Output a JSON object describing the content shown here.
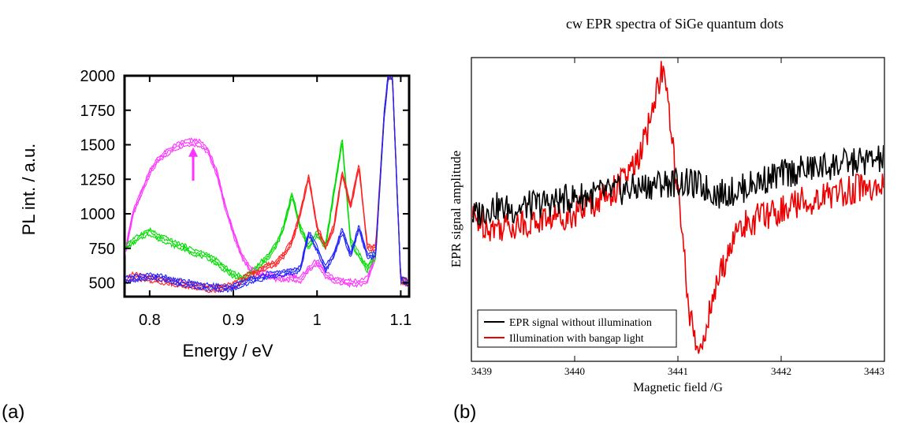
{
  "panel_labels": [
    "(a)",
    "(b)"
  ],
  "chart_data": [
    {
      "type": "line",
      "panel": "(a)",
      "title": "",
      "xlabel": "Energy / eV",
      "ylabel": "PL int. / a.u.",
      "xlim": [
        0.77,
        1.11
      ],
      "ylim": [
        400,
        2000
      ],
      "xticks": [
        0.8,
        0.9,
        1.0,
        1.1
      ],
      "xtick_labels": [
        "0.8",
        "0.9",
        "1",
        "1.1"
      ],
      "yticks": [
        500,
        750,
        1000,
        1250,
        1500,
        1750,
        2000
      ],
      "ytick_labels": [
        "500",
        "750",
        "1000",
        "1250",
        "1500",
        "1750",
        "2000"
      ],
      "grid": false,
      "annotations": [
        {
          "type": "arrow",
          "x": 0.852,
          "y_from": 1240,
          "y_to": 1470,
          "color": "#ff33ff"
        }
      ],
      "series": [
        {
          "color": "#ff33ff",
          "x": [
            0.77,
            0.78,
            0.79,
            0.8,
            0.81,
            0.82,
            0.83,
            0.84,
            0.85,
            0.86,
            0.87,
            0.88,
            0.89,
            0.9,
            0.91,
            0.92,
            0.93,
            0.94,
            0.95,
            0.96,
            0.97,
            0.98,
            0.99,
            1.0,
            1.01,
            1.02,
            1.03,
            1.04,
            1.05,
            1.06,
            1.07,
            1.08,
            1.085,
            1.09,
            1.1,
            1.11
          ],
          "y": [
            700,
            1000,
            1150,
            1300,
            1390,
            1440,
            1480,
            1510,
            1520,
            1510,
            1450,
            1300,
            1060,
            860,
            700,
            600,
            570,
            560,
            540,
            530,
            540,
            520,
            600,
            650,
            560,
            520,
            510,
            500,
            500,
            520,
            700,
            1700,
            2000,
            2000,
            520,
            500
          ]
        },
        {
          "color": "#00dd00",
          "x": [
            0.77,
            0.78,
            0.79,
            0.8,
            0.81,
            0.82,
            0.83,
            0.84,
            0.85,
            0.86,
            0.87,
            0.88,
            0.89,
            0.9,
            0.91,
            0.92,
            0.93,
            0.94,
            0.95,
            0.96,
            0.97,
            0.98,
            0.99,
            1.0,
            1.01,
            1.02,
            1.03,
            1.04,
            1.05,
            1.06,
            1.07,
            1.08,
            1.085,
            1.09,
            1.1,
            1.11
          ],
          "y": [
            760,
            800,
            840,
            870,
            830,
            810,
            780,
            760,
            730,
            710,
            690,
            650,
            600,
            560,
            530,
            560,
            620,
            680,
            760,
            900,
            1140,
            900,
            760,
            860,
            760,
            1150,
            1530,
            800,
            700,
            600,
            700,
            1700,
            2000,
            2000,
            520,
            500
          ]
        },
        {
          "color": "#ff2222",
          "x": [
            0.77,
            0.78,
            0.79,
            0.8,
            0.81,
            0.82,
            0.83,
            0.84,
            0.85,
            0.86,
            0.87,
            0.88,
            0.89,
            0.9,
            0.91,
            0.92,
            0.93,
            0.94,
            0.95,
            0.96,
            0.97,
            0.98,
            0.99,
            1.0,
            1.01,
            1.02,
            1.03,
            1.04,
            1.05,
            1.06,
            1.07,
            1.08,
            1.085,
            1.09,
            1.1,
            1.11
          ],
          "y": [
            520,
            550,
            540,
            530,
            520,
            510,
            500,
            490,
            480,
            470,
            460,
            460,
            470,
            480,
            520,
            560,
            580,
            620,
            640,
            700,
            800,
            1000,
            1270,
            900,
            760,
            900,
            1300,
            1050,
            1350,
            760,
            750,
            1700,
            2000,
            2000,
            520,
            500
          ]
        },
        {
          "color": "#2222ff",
          "x": [
            0.77,
            0.78,
            0.79,
            0.8,
            0.81,
            0.82,
            0.83,
            0.84,
            0.85,
            0.86,
            0.87,
            0.88,
            0.89,
            0.9,
            0.91,
            0.92,
            0.93,
            0.94,
            0.95,
            0.96,
            0.97,
            0.98,
            0.99,
            1.0,
            1.01,
            1.02,
            1.03,
            1.04,
            1.05,
            1.06,
            1.07,
            1.08,
            1.085,
            1.09,
            1.1,
            1.11
          ],
          "y": [
            520,
            530,
            540,
            545,
            540,
            530,
            510,
            500,
            490,
            480,
            470,
            465,
            460,
            470,
            490,
            520,
            530,
            550,
            560,
            570,
            580,
            600,
            860,
            750,
            600,
            700,
            880,
            700,
            900,
            700,
            700,
            1700,
            2000,
            2000,
            520,
            500
          ]
        }
      ]
    },
    {
      "type": "line",
      "panel": "(b)",
      "title": "cw EPR spectra of SiGe quantum dots",
      "xlabel": "Magnetic field /G",
      "ylabel": "EPR signal amplitude",
      "xlim": [
        3439,
        3443
      ],
      "ylim": [
        -1.0,
        1.0
      ],
      "xticks": [
        3439,
        3440,
        3441,
        3442,
        3443
      ],
      "xtick_labels": [
        "3439",
        "3440",
        "3441",
        "3442",
        "3443"
      ],
      "yticks": [],
      "grid": false,
      "legend_position": "bottom-left",
      "series": [
        {
          "name": "EPR signal without illumination",
          "color": "#000000",
          "x": [
            3439.0,
            3439.2,
            3439.4,
            3439.6,
            3439.8,
            3440.0,
            3440.2,
            3440.4,
            3440.6,
            3440.8,
            3441.0,
            3441.2,
            3441.4,
            3441.6,
            3441.8,
            3442.0,
            3442.2,
            3442.4,
            3442.6,
            3442.8,
            3443.0
          ],
          "y": [
            -0.05,
            0.02,
            0.0,
            0.03,
            0.05,
            0.08,
            0.1,
            0.12,
            0.14,
            0.17,
            0.18,
            0.16,
            0.1,
            0.13,
            0.19,
            0.23,
            0.26,
            0.28,
            0.3,
            0.32,
            0.33
          ]
        },
        {
          "name": "Illumination with bangap light",
          "color": "#ee0000",
          "x": [
            3439.0,
            3439.2,
            3439.4,
            3439.6,
            3439.8,
            3440.0,
            3440.2,
            3440.4,
            3440.6,
            3440.7,
            3440.8,
            3440.85,
            3440.9,
            3440.95,
            3441.0,
            3441.05,
            3441.1,
            3441.15,
            3441.2,
            3441.3,
            3441.4,
            3441.5,
            3441.6,
            3441.8,
            3442.0,
            3442.2,
            3442.4,
            3442.6,
            3442.8,
            3443.0
          ],
          "y": [
            -0.05,
            -0.12,
            -0.1,
            -0.08,
            -0.05,
            -0.02,
            0.05,
            0.14,
            0.3,
            0.5,
            0.8,
            0.93,
            0.72,
            0.4,
            0.1,
            -0.25,
            -0.6,
            -0.85,
            -0.95,
            -0.7,
            -0.45,
            -0.25,
            -0.12,
            -0.05,
            0.0,
            0.05,
            0.08,
            0.12,
            0.15,
            0.14
          ]
        }
      ]
    }
  ]
}
